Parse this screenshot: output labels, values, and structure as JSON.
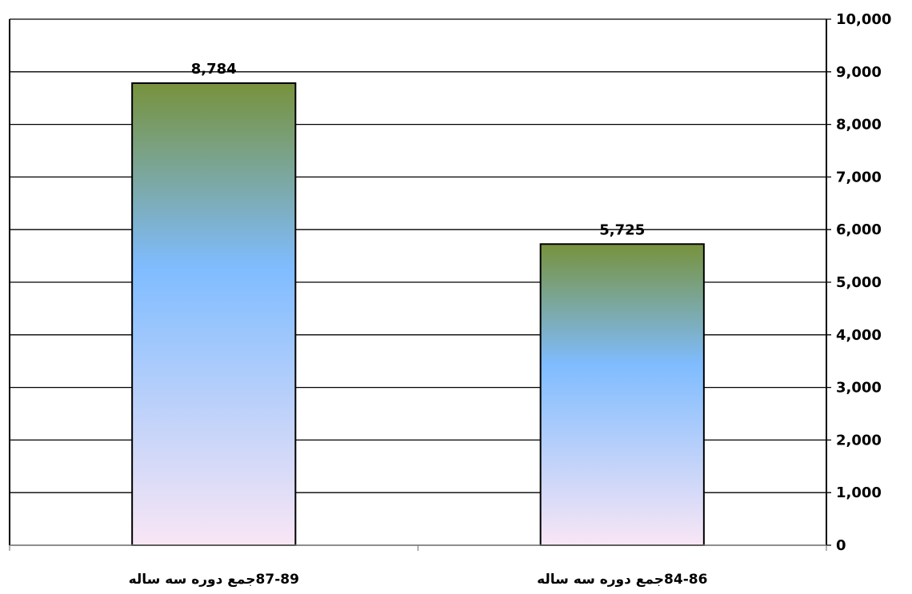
{
  "chart_data": {
    "type": "bar",
    "categories": [
      "87-89جمع دوره سه ساله",
      "84-86جمع دوره سه ساله"
    ],
    "values": [
      8784,
      5725
    ],
    "data_labels": [
      "8,784",
      "5,725"
    ],
    "yticks": [
      "0",
      "1,000",
      "2,000",
      "3,000",
      "4,000",
      "5,000",
      "6,000",
      "7,000",
      "8,000",
      "9,000",
      "10,000"
    ],
    "ylim": [
      0,
      10000
    ],
    "y_axis_side": "right",
    "grid": true,
    "title": "",
    "xlabel": "",
    "ylabel": "",
    "colors": {
      "bar_top": "#77923c",
      "bar_mid": "#7fbcff",
      "bar_bottom": "#f9e6f5",
      "gridline": "#000000",
      "border": "#000000"
    }
  }
}
